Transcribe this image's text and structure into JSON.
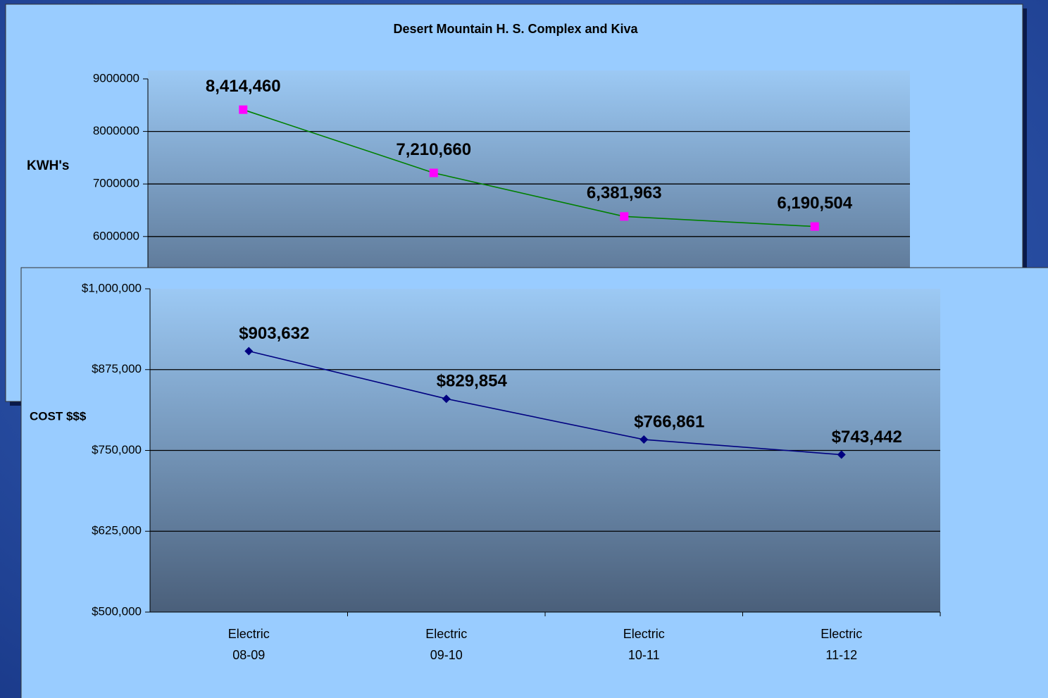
{
  "chart_data": [
    {
      "type": "line",
      "title": "Desert Mountain H. S. Complex and Kiva",
      "y_label": "KWH's",
      "categories": [
        null,
        null,
        null,
        null
      ],
      "series": [
        {
          "name": null,
          "color": "#008000",
          "marker_color": "#ff00ff",
          "marker": "square",
          "values": [
            8414460,
            7210660,
            6381963,
            6190504
          ],
          "value_labels": [
            "8,414,460",
            "7,210,660",
            "6,381,963",
            "6,190,504"
          ]
        }
      ],
      "ylim": [
        4000000,
        9000000
      ],
      "yticks": [
        6000000,
        7000000,
        8000000,
        9000000
      ],
      "grid": true
    },
    {
      "type": "line",
      "y_label": "COST $$$",
      "categories": [
        [
          "Electric",
          "08-09"
        ],
        [
          "Electric",
          "09-10"
        ],
        [
          "Electric",
          "10-11"
        ],
        [
          "Electric",
          "11-12"
        ]
      ],
      "series": [
        {
          "name": null,
          "color": "#000080",
          "marker_color": "#000080",
          "marker": "diamond",
          "values": [
            903632,
            829854,
            766861,
            743442
          ],
          "value_labels": [
            "$903,632",
            "$829,854",
            "$766,861",
            "$743,442"
          ]
        }
      ],
      "ylim": [
        500000,
        1000000
      ],
      "yticks": [
        {
          "value": 500000,
          "label": "$500,000"
        },
        {
          "value": 625000,
          "label": "$625,000"
        },
        {
          "value": 750000,
          "label": "$750,000"
        },
        {
          "value": 875000,
          "label": "$875,000"
        },
        {
          "value": 1000000,
          "label": "$1,000,000"
        }
      ],
      "grid": true
    }
  ]
}
